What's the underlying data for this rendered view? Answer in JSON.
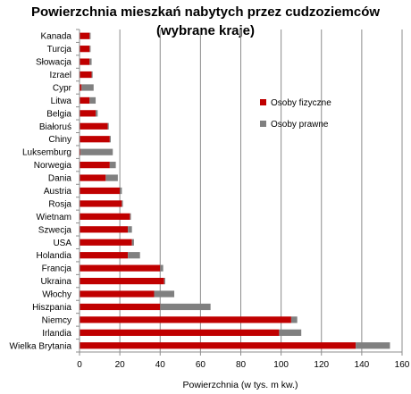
{
  "chart_data": {
    "type": "bar",
    "orientation": "horizontal",
    "stacked": true,
    "title": "Powierzchnia mieszkań nabytych przez cudzoziemców",
    "subtitle": "(wybrane kraje)",
    "xlabel": "Powierzchnia (w tys. m kw.)",
    "ylabel": "",
    "xlim": [
      0,
      160
    ],
    "xticks": [
      "0",
      "20",
      "40",
      "60",
      "80",
      "100",
      "120",
      "140",
      "160"
    ],
    "grid": true,
    "legend_position": "right",
    "categories": [
      "Kanada",
      "Turcja",
      "Słowacja",
      "Izrael",
      "Cypr",
      "Litwa",
      "Belgia",
      "Białoruś",
      "Chiny",
      "Luksemburg",
      "Norwegia",
      "Dania",
      "Austria",
      "Rosja",
      "Wietnam",
      "Szwecja",
      "USA",
      "Holandia",
      "Francja",
      "Ukraina",
      "Włochy",
      "Hiszpania",
      "Niemcy",
      "Irlandia",
      "Wielka Brytania"
    ],
    "series": [
      {
        "name": "Osoby fizyczne",
        "color": "#c00000",
        "values": [
          5,
          5,
          5,
          6,
          1,
          5,
          8,
          14,
          15,
          0.5,
          15,
          13,
          20,
          21,
          25,
          24,
          26,
          24,
          40,
          42,
          37,
          40,
          105,
          99,
          137
        ]
      },
      {
        "name": "Osoby prawne",
        "color": "#808080",
        "values": [
          0.5,
          0.5,
          1,
          0.5,
          6,
          3,
          1,
          0.5,
          0.5,
          16,
          3,
          6,
          1,
          0.5,
          0.5,
          2,
          1,
          6,
          1.5,
          0.5,
          10,
          25,
          3,
          11,
          17
        ]
      }
    ]
  }
}
